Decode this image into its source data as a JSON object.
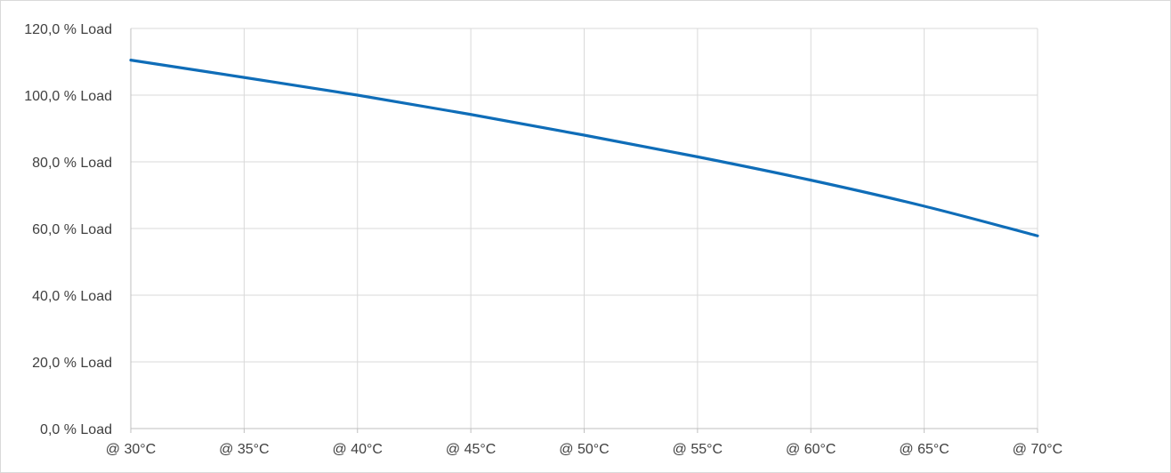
{
  "chart_data": {
    "type": "line",
    "categories": [
      "@ 30°C",
      "@ 35°C",
      "@ 40°C",
      "@ 45°C",
      "@ 50°C",
      "@ 55°C",
      "@ 60°C",
      "@ 65°C",
      "@ 70°C"
    ],
    "y_ticks": [
      "0,0 % Load",
      "20,0 % Load",
      "40,0 % Load",
      "60,0 % Load",
      "80,0 % Load",
      "100,0 % Load",
      "120,0 % Load"
    ],
    "series": [
      {
        "values": [
          110.5,
          105.3,
          100.0,
          94.2,
          88.0,
          81.5,
          74.5,
          66.7,
          57.8
        ]
      }
    ],
    "ylim": [
      0,
      120
    ],
    "grid": true,
    "legend": "none",
    "colors": {
      "line": "#0f6db8",
      "grid": "#d9d9d9",
      "axis": "#bfbfbf",
      "text": "#404040"
    }
  }
}
